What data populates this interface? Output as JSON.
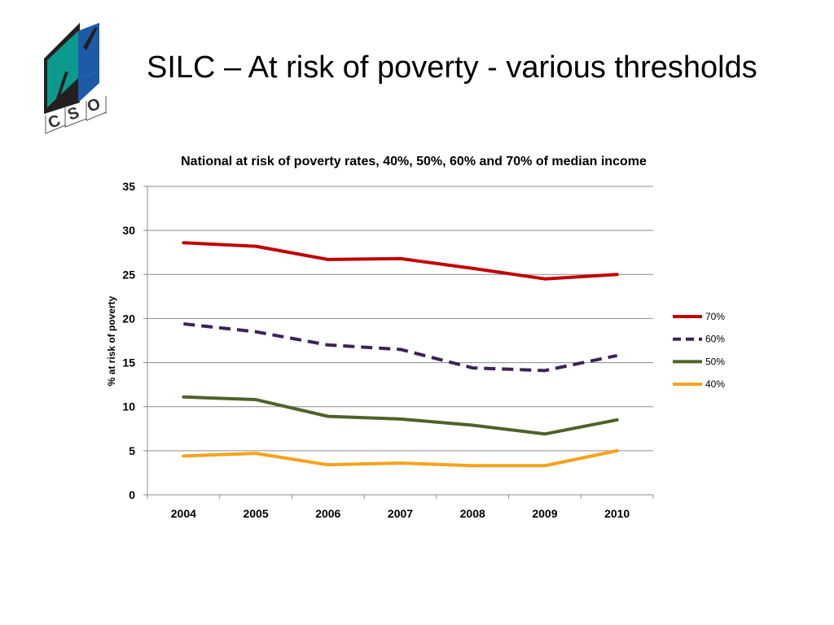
{
  "slide": {
    "title": "SILC – At risk of poverty - various thresholds",
    "logo_text": "CSO"
  },
  "chart_data": {
    "type": "line",
    "title": "National at risk of poverty rates, 40%, 50%, 60% and 70% of median income",
    "xlabel": "",
    "ylabel": "% at risk of poverty",
    "x": [
      "2004",
      "2005",
      "2006",
      "2007",
      "2008",
      "2009",
      "2010"
    ],
    "ylim": [
      0,
      35
    ],
    "yticks": [
      0,
      5,
      10,
      15,
      20,
      25,
      30,
      35
    ],
    "grid": true,
    "legend_position": "right",
    "series": [
      {
        "name": "70%",
        "color": "#C00000",
        "dashed": false,
        "values": [
          28.6,
          28.2,
          26.7,
          26.8,
          25.7,
          24.5,
          25.0
        ]
      },
      {
        "name": "60%",
        "color": "#3F2257",
        "dashed": true,
        "values": [
          19.4,
          18.5,
          17.0,
          16.5,
          14.4,
          14.1,
          15.8
        ]
      },
      {
        "name": "50%",
        "color": "#4F6228",
        "dashed": false,
        "values": [
          11.1,
          10.8,
          8.9,
          8.6,
          7.9,
          6.9,
          8.5
        ]
      },
      {
        "name": "40%",
        "color": "#F5A31C",
        "dashed": false,
        "values": [
          4.4,
          4.7,
          3.4,
          3.6,
          3.3,
          3.3,
          5.0
        ]
      }
    ]
  }
}
